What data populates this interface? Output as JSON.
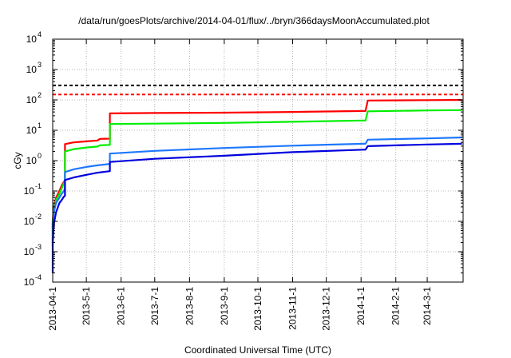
{
  "chart_data": {
    "type": "line",
    "title": "/data/run/goesPlots/archive/2014-04-01/flux/../bryn/366daysMoonAccumulated.plot",
    "xlabel": "Coordinated Universal Time (UTC)",
    "ylabel": "cGy",
    "yscale": "log",
    "ylim": [
      0.0001,
      10000
    ],
    "xlim": [
      "2013-04-01",
      "2014-04-02"
    ],
    "grid": true,
    "y_ticks": [
      {
        "base": "10",
        "exp": "-4",
        "value": 0.0001
      },
      {
        "base": "10",
        "exp": "-3",
        "value": 0.001
      },
      {
        "base": "10",
        "exp": "-2",
        "value": 0.01
      },
      {
        "base": "10",
        "exp": "-1",
        "value": 0.1
      },
      {
        "base": "10",
        "exp": "0",
        "value": 1
      },
      {
        "base": "10",
        "exp": "1",
        "value": 10
      },
      {
        "base": "10",
        "exp": "2",
        "value": 100
      },
      {
        "base": "10",
        "exp": "3",
        "value": 1000
      },
      {
        "base": "10",
        "exp": "4",
        "value": 10000
      }
    ],
    "x_ticks": [
      {
        "label": "2013-04-1",
        "date": "2013-04-01"
      },
      {
        "label": "2013-5-1",
        "date": "2013-05-01"
      },
      {
        "label": "2013-6-1",
        "date": "2013-06-01"
      },
      {
        "label": "2013-7-1",
        "date": "2013-07-01"
      },
      {
        "label": "2013-8-1",
        "date": "2013-08-01"
      },
      {
        "label": "2013-9-1",
        "date": "2013-09-01"
      },
      {
        "label": "2013-10-1",
        "date": "2013-10-01"
      },
      {
        "label": "2013-11-1",
        "date": "2013-11-01"
      },
      {
        "label": "2013-12-1",
        "date": "2013-12-01"
      },
      {
        "label": "2014-1-1",
        "date": "2014-01-01"
      },
      {
        "label": "2014-2-1",
        "date": "2014-02-01"
      },
      {
        "label": "2014-3-1",
        "date": "2014-03-01"
      }
    ],
    "reference_lines": [
      {
        "color": "#000000",
        "value": 300,
        "dashed": true
      },
      {
        "color": "#ff0000",
        "value": 150,
        "dashed": true
      }
    ],
    "series": [
      {
        "color": "#ff0000",
        "points": [
          [
            "2013-04-01",
            0.002
          ],
          [
            "2013-04-01",
            0.01
          ],
          [
            "2013-04-02",
            0.03
          ],
          [
            "2013-04-04",
            0.06
          ],
          [
            "2013-04-07",
            0.1
          ],
          [
            "2013-04-09",
            0.15
          ],
          [
            "2013-04-11",
            0.2
          ],
          [
            "2013-04-12",
            0.22
          ],
          [
            "2013-04-12",
            3.5
          ],
          [
            "2013-04-20",
            4.0
          ],
          [
            "2013-05-01",
            4.3
          ],
          [
            "2013-05-11",
            4.6
          ],
          [
            "2013-05-13",
            5.2
          ],
          [
            "2013-05-22",
            5.3
          ],
          [
            "2013-05-22",
            36
          ],
          [
            "2013-07-01",
            37
          ],
          [
            "2013-09-01",
            38
          ],
          [
            "2013-11-01",
            40
          ],
          [
            "2014-01-03",
            43
          ],
          [
            "2014-01-05",
            43
          ],
          [
            "2014-01-07",
            95
          ],
          [
            "2014-03-01",
            98
          ],
          [
            "2014-04-01",
            100
          ]
        ]
      },
      {
        "color": "#00ee00",
        "points": [
          [
            "2013-04-01",
            0.002
          ],
          [
            "2013-04-01",
            0.01
          ],
          [
            "2013-04-02",
            0.02
          ],
          [
            "2013-04-04",
            0.05
          ],
          [
            "2013-04-07",
            0.08
          ],
          [
            "2013-04-09",
            0.12
          ],
          [
            "2013-04-11",
            0.18
          ],
          [
            "2013-04-12",
            0.2
          ],
          [
            "2013-04-12",
            2.0
          ],
          [
            "2013-04-20",
            2.4
          ],
          [
            "2013-05-01",
            2.7
          ],
          [
            "2013-05-11",
            2.9
          ],
          [
            "2013-05-13",
            3.2
          ],
          [
            "2013-05-22",
            3.3
          ],
          [
            "2013-05-22",
            16
          ],
          [
            "2013-07-01",
            16.5
          ],
          [
            "2013-09-01",
            17.5
          ],
          [
            "2013-11-01",
            19
          ],
          [
            "2014-01-03",
            21
          ],
          [
            "2014-01-05",
            21
          ],
          [
            "2014-01-07",
            42
          ],
          [
            "2014-03-01",
            45
          ],
          [
            "2014-04-01",
            46
          ]
        ]
      },
      {
        "color": "#1e78ff",
        "points": [
          [
            "2013-04-01",
            0.0015
          ],
          [
            "2013-04-01",
            0.008
          ],
          [
            "2013-04-02",
            0.02
          ],
          [
            "2013-04-04",
            0.04
          ],
          [
            "2013-04-07",
            0.06
          ],
          [
            "2013-04-09",
            0.08
          ],
          [
            "2013-04-11",
            0.1
          ],
          [
            "2013-04-12",
            0.12
          ],
          [
            "2013-04-12",
            0.42
          ],
          [
            "2013-04-20",
            0.52
          ],
          [
            "2013-05-01",
            0.62
          ],
          [
            "2013-05-11",
            0.7
          ],
          [
            "2013-05-22",
            0.78
          ],
          [
            "2013-05-22",
            1.7
          ],
          [
            "2013-07-01",
            2.1
          ],
          [
            "2013-09-01",
            2.6
          ],
          [
            "2013-11-01",
            3.1
          ],
          [
            "2014-01-03",
            3.6
          ],
          [
            "2014-01-05",
            3.6
          ],
          [
            "2014-01-07",
            4.9
          ],
          [
            "2014-03-01",
            5.4
          ],
          [
            "2014-04-01",
            5.8
          ]
        ]
      },
      {
        "color": "#0000dd",
        "points": [
          [
            "2013-04-01",
            0.0002
          ],
          [
            "2013-04-01",
            0.002
          ],
          [
            "2013-04-02",
            0.008
          ],
          [
            "2013-04-04",
            0.02
          ],
          [
            "2013-04-07",
            0.04
          ],
          [
            "2013-04-09",
            0.05
          ],
          [
            "2013-04-11",
            0.065
          ],
          [
            "2013-04-12",
            0.07
          ],
          [
            "2013-04-12",
            0.23
          ],
          [
            "2013-04-20",
            0.28
          ],
          [
            "2013-05-01",
            0.34
          ],
          [
            "2013-05-11",
            0.4
          ],
          [
            "2013-05-22",
            0.45
          ],
          [
            "2013-05-22",
            0.9
          ],
          [
            "2013-07-01",
            1.15
          ],
          [
            "2013-09-01",
            1.45
          ],
          [
            "2013-11-01",
            1.9
          ],
          [
            "2014-01-03",
            2.3
          ],
          [
            "2014-01-05",
            2.3
          ],
          [
            "2014-01-07",
            3.0
          ],
          [
            "2014-03-01",
            3.4
          ],
          [
            "2014-04-01",
            3.6
          ]
        ]
      }
    ]
  }
}
